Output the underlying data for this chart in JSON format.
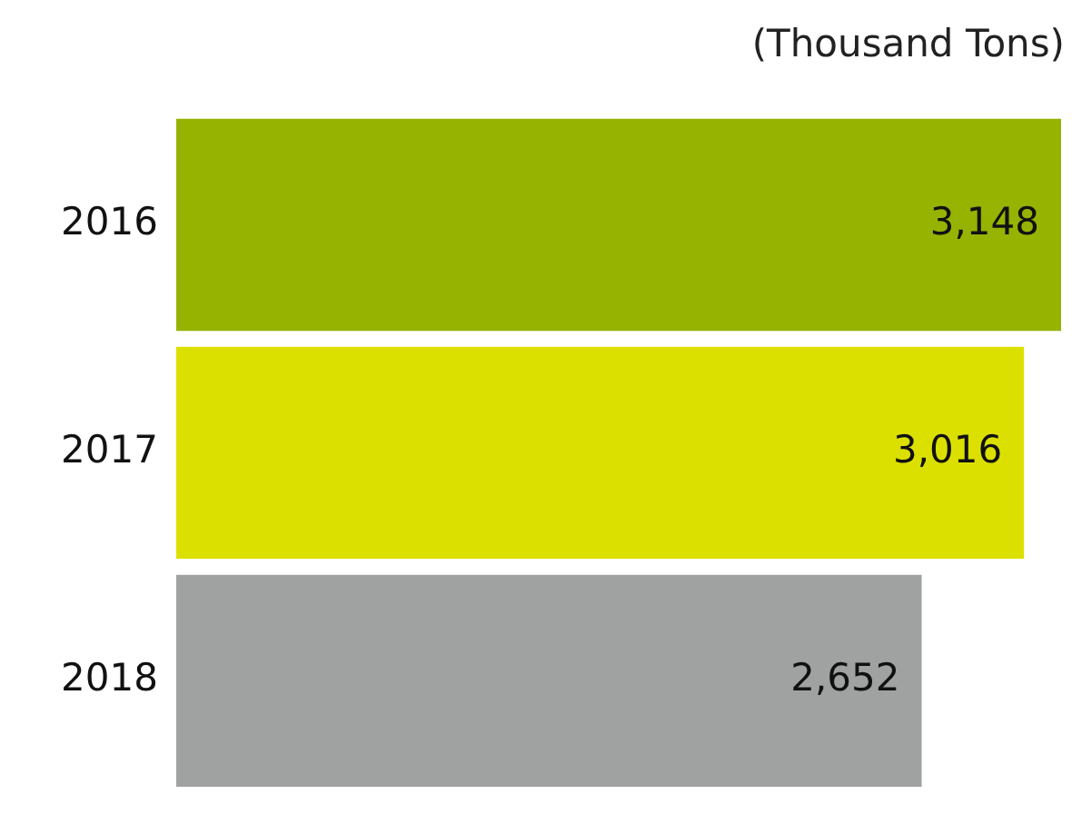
{
  "chart_data": {
    "type": "bar",
    "orientation": "horizontal",
    "xlabel": "(Thousand Tons)",
    "categories": [
      "2016",
      "2017",
      "2018"
    ],
    "values": [
      3148,
      3016,
      2652
    ],
    "colors": [
      "#95b300",
      "#dce000",
      "#a0a2a1"
    ],
    "value_labels": [
      "3,148",
      "3,016",
      "2,652"
    ],
    "grid": false,
    "legend": false
  }
}
